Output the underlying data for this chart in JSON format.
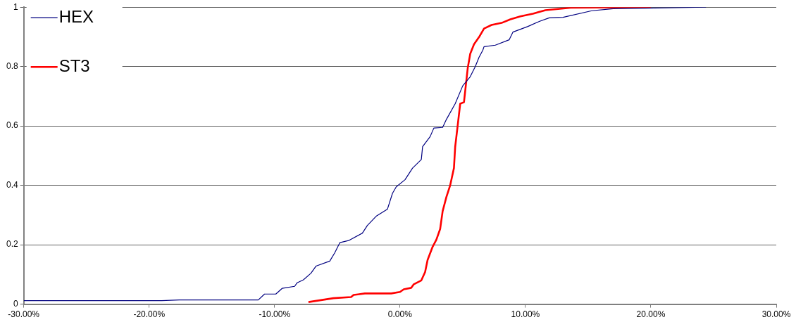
{
  "chart_data": {
    "type": "line",
    "xlim": [
      -0.3,
      0.3
    ],
    "xticks": [
      {
        "value": -0.3,
        "label": "-30.00%"
      },
      {
        "value": -0.2,
        "label": "-20.00%"
      },
      {
        "value": -0.1,
        "label": "-10.00%"
      },
      {
        "value": 0,
        "label": "0.00%"
      },
      {
        "value": 0.1,
        "label": "10.00%"
      },
      {
        "value": 0.2,
        "label": "20.00%"
      },
      {
        "value": 0.3,
        "label": "30.00%"
      }
    ],
    "ylim": [
      0,
      1
    ],
    "yticks": [
      0,
      0.2,
      0.4,
      0.6,
      0.8,
      1
    ],
    "grid": "y",
    "legend": "top left",
    "marker": "none",
    "line_style": "solid",
    "series": [
      {
        "name": "HEX",
        "color": "#000080",
        "x": [
          -0.3,
          -0.19,
          -0.176,
          -0.113,
          -0.108,
          -0.099,
          -0.094,
          -0.084,
          -0.082,
          -0.077,
          -0.071,
          -0.067,
          -0.056,
          -0.052,
          -0.048,
          -0.041,
          -0.03,
          -0.026,
          -0.019,
          -0.01,
          -0.006,
          -0.003,
          0.004,
          0.01,
          0.017,
          0.018,
          0.024,
          0.027,
          0.034,
          0.037,
          0.044,
          0.05,
          0.056,
          0.06,
          0.063,
          0.066,
          0.067,
          0.076,
          0.087,
          0.09,
          0.102,
          0.111,
          0.119,
          0.13,
          0.153,
          0.17,
          0.244
        ],
        "values": [
          0.012,
          0.012,
          0.014,
          0.014,
          0.034,
          0.034,
          0.053,
          0.06,
          0.072,
          0.082,
          0.104,
          0.128,
          0.145,
          0.173,
          0.207,
          0.214,
          0.239,
          0.265,
          0.296,
          0.32,
          0.373,
          0.395,
          0.419,
          0.458,
          0.487,
          0.53,
          0.564,
          0.593,
          0.595,
          0.622,
          0.675,
          0.735,
          0.766,
          0.8,
          0.831,
          0.855,
          0.867,
          0.872,
          0.89,
          0.916,
          0.935,
          0.952,
          0.964,
          0.966,
          0.988,
          0.995,
          1
        ]
      },
      {
        "name": "ST3",
        "color": "#ff0000",
        "x": [
          -0.073,
          -0.053,
          -0.039,
          -0.037,
          -0.028,
          -0.007,
          0,
          0.003,
          0.009,
          0.011,
          0.017,
          0.02,
          0.022,
          0.026,
          0.029,
          0.032,
          0.034,
          0.037,
          0.04,
          0.043,
          0.044,
          0.046,
          0.048,
          0.051,
          0.054,
          0.056,
          0.059,
          0.063,
          0.067,
          0.073,
          0.081,
          0.088,
          0.096,
          0.106,
          0.116,
          0.136,
          0.2
        ],
        "values": [
          0.007,
          0.02,
          0.024,
          0.031,
          0.036,
          0.036,
          0.041,
          0.05,
          0.055,
          0.067,
          0.08,
          0.108,
          0.149,
          0.193,
          0.217,
          0.253,
          0.313,
          0.361,
          0.4,
          0.458,
          0.53,
          0.602,
          0.675,
          0.68,
          0.795,
          0.843,
          0.875,
          0.899,
          0.928,
          0.94,
          0.947,
          0.959,
          0.969,
          0.978,
          0.99,
          0.998,
          1
        ]
      }
    ]
  }
}
